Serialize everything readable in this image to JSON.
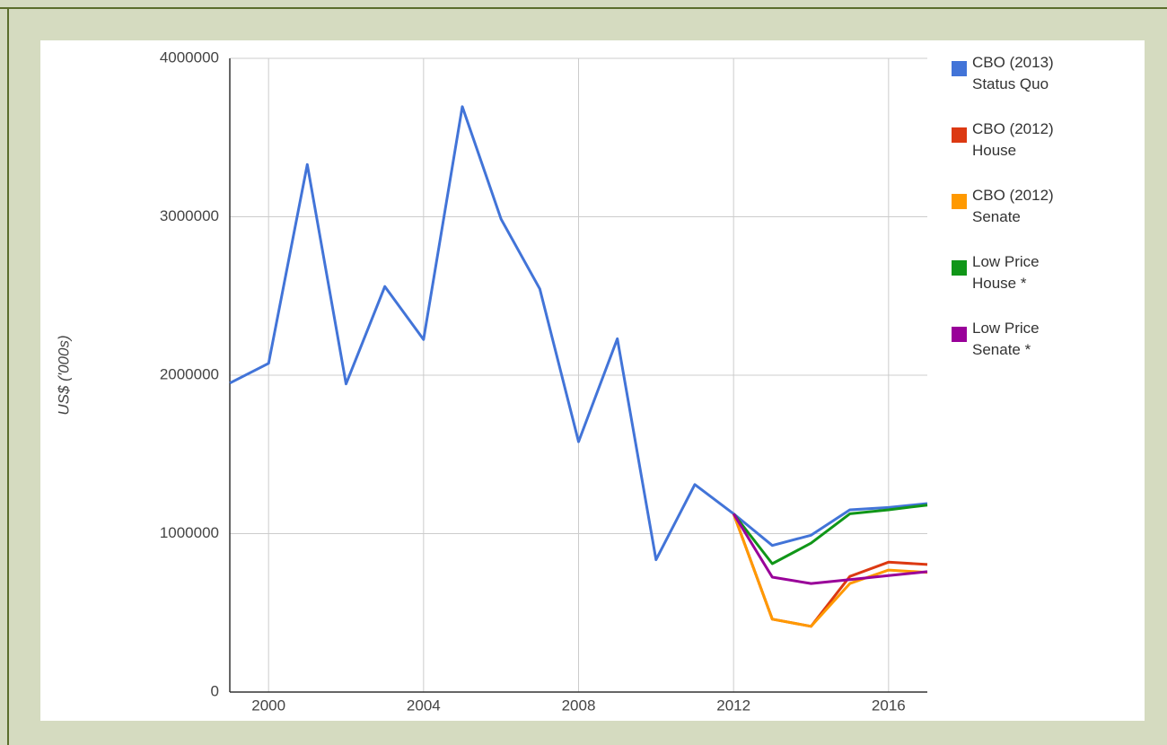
{
  "chart_data": {
    "type": "line",
    "y_label": "US$ ('000s)",
    "x": [
      1999,
      2000,
      2001,
      2002,
      2003,
      2004,
      2005,
      2006,
      2007,
      2008,
      2009,
      2010,
      2011,
      2012,
      2013,
      2014,
      2015,
      2016,
      2017
    ],
    "series": [
      {
        "name": "CBO (2013) Status Quo",
        "color": "#4274d8",
        "values": [
          1950000,
          2075000,
          3330000,
          1945000,
          2560000,
          2225000,
          3695000,
          2985000,
          2545000,
          1580000,
          2230000,
          835000,
          1310000,
          1125000,
          925000,
          990000,
          1150000,
          1165000,
          1190000
        ]
      },
      {
        "name": "CBO (2012) House",
        "color": "#dc3912",
        "values": [
          null,
          null,
          null,
          null,
          null,
          null,
          null,
          null,
          null,
          null,
          null,
          null,
          null,
          1125000,
          460000,
          415000,
          730000,
          820000,
          805000
        ]
      },
      {
        "name": "CBO (2012) Senate",
        "color": "#ff9900",
        "values": [
          null,
          null,
          null,
          null,
          null,
          null,
          null,
          null,
          null,
          null,
          null,
          null,
          null,
          1125000,
          460000,
          415000,
          685000,
          770000,
          755000
        ]
      },
      {
        "name": "Low Price House *",
        "color": "#109618",
        "values": [
          null,
          null,
          null,
          null,
          null,
          null,
          null,
          null,
          null,
          null,
          null,
          null,
          null,
          1125000,
          810000,
          940000,
          1125000,
          1150000,
          1180000
        ]
      },
      {
        "name": "Low Price Senate *",
        "color": "#990099",
        "values": [
          null,
          null,
          null,
          null,
          null,
          null,
          null,
          null,
          null,
          null,
          null,
          null,
          null,
          1125000,
          725000,
          685000,
          710000,
          735000,
          760000
        ]
      }
    ],
    "xlim": [
      1999,
      2017
    ],
    "xticks": [
      2000,
      2004,
      2008,
      2012,
      2016
    ],
    "ylim": [
      0,
      4000000
    ],
    "yticks": [
      0,
      1000000,
      2000000,
      3000000,
      4000000
    ],
    "grid": true,
    "legend": "right"
  }
}
